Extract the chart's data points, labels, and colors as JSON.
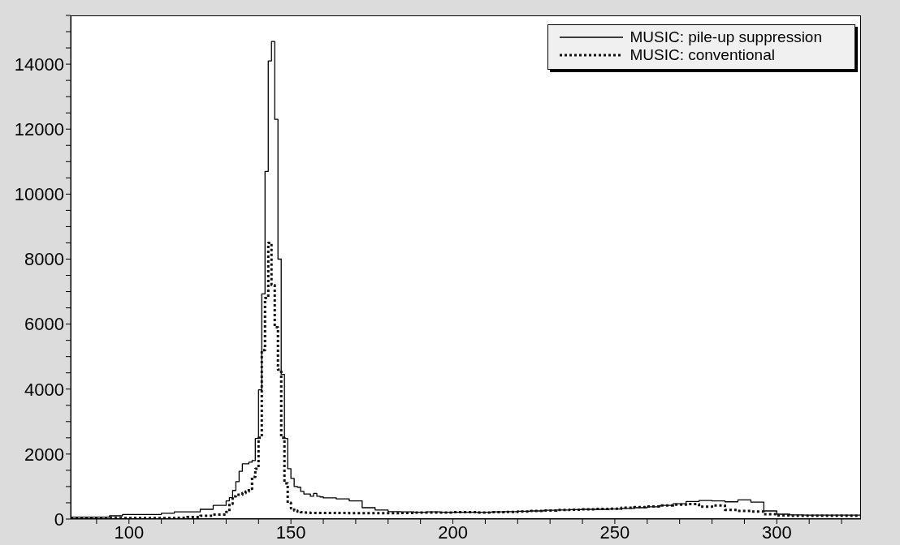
{
  "chart_data": {
    "type": "histogram",
    "bins": [
      82,
      86,
      90,
      94,
      98,
      102,
      106,
      110,
      114,
      118,
      122,
      126,
      130,
      131,
      132,
      133,
      134,
      135,
      136,
      137,
      138,
      139,
      140,
      141,
      142,
      143,
      144,
      145,
      146,
      147,
      148,
      149,
      150,
      151,
      152,
      153,
      154,
      155,
      156,
      157,
      158,
      159,
      160,
      164,
      168,
      172,
      176,
      180,
      184,
      188,
      192,
      196,
      200,
      204,
      208,
      212,
      216,
      220,
      224,
      228,
      232,
      236,
      240,
      244,
      248,
      252,
      256,
      260,
      264,
      268,
      272,
      276,
      280,
      284,
      288,
      292,
      296,
      300,
      304,
      308,
      312,
      316,
      320,
      324,
      326
    ],
    "series": [
      {
        "name": "MUSIC: pile-up suppression",
        "color": "#000000",
        "line_style": "solid",
        "values": [
          60,
          60,
          60,
          100,
          140,
          140,
          140,
          180,
          220,
          220,
          300,
          420,
          560,
          660,
          880,
          1150,
          1470,
          1700,
          1700,
          1750,
          1800,
          2480,
          3980,
          6930,
          10700,
          14100,
          14700,
          12300,
          8000,
          4450,
          2480,
          1550,
          1250,
          1000,
          980,
          850,
          770,
          770,
          700,
          790,
          700,
          680,
          650,
          620,
          560,
          350,
          280,
          230,
          220,
          210,
          220,
          210,
          210,
          210,
          210,
          220,
          230,
          240,
          250,
          270,
          280,
          290,
          300,
          300,
          310,
          330,
          350,
          380,
          420,
          470,
          540,
          570,
          560,
          530,
          590,
          520,
          250,
          150,
          130,
          120,
          120,
          120,
          120,
          120
        ]
      },
      {
        "name": "MUSIC: conventional",
        "color": "#111111",
        "line_style": "dotted",
        "values": [
          30,
          30,
          30,
          30,
          30,
          30,
          30,
          30,
          40,
          60,
          100,
          140,
          220,
          470,
          700,
          750,
          750,
          800,
          850,
          930,
          1300,
          1550,
          2500,
          5200,
          6800,
          8500,
          7200,
          5900,
          4600,
          2500,
          1100,
          500,
          330,
          260,
          230,
          210,
          200,
          200,
          190,
          190,
          190,
          190,
          190,
          185,
          180,
          180,
          180,
          180,
          190,
          200,
          200,
          200,
          210,
          210,
          200,
          210,
          220,
          230,
          250,
          260,
          280,
          290,
          300,
          310,
          320,
          350,
          370,
          390,
          420,
          440,
          460,
          380,
          420,
          280,
          250,
          230,
          150,
          110,
          100,
          100,
          100,
          100,
          100,
          100
        ]
      }
    ],
    "xlim": [
      82,
      326
    ],
    "xticks": [
      {
        "value": 90,
        "label": null
      },
      100,
      {
        "value": 110,
        "label": null
      },
      {
        "value": 120,
        "label": null
      },
      {
        "value": 130,
        "label": null
      },
      {
        "value": 140,
        "label": null
      },
      150,
      {
        "value": 160,
        "label": null
      },
      {
        "value": 170,
        "label": null
      },
      {
        "value": 180,
        "label": null
      },
      {
        "value": 190,
        "label": null
      },
      200,
      {
        "value": 210,
        "label": null
      },
      {
        "value": 220,
        "label": null
      },
      {
        "value": 230,
        "label": null
      },
      {
        "value": 240,
        "label": null
      },
      250,
      {
        "value": 260,
        "label": null
      },
      {
        "value": 270,
        "label": null
      },
      {
        "value": 280,
        "label": null
      },
      {
        "value": 290,
        "label": null
      },
      300,
      {
        "value": 310,
        "label": null
      },
      {
        "value": 320,
        "label": null
      }
    ],
    "ylim": [
      0,
      15500
    ],
    "yticks": [
      0,
      {
        "value": 500,
        "label": null
      },
      {
        "value": 1000,
        "label": null
      },
      {
        "value": 1500,
        "label": null
      },
      2000,
      {
        "value": 2500,
        "label": null
      },
      {
        "value": 3000,
        "label": null
      },
      {
        "value": 3500,
        "label": null
      },
      4000,
      {
        "value": 4500,
        "label": null
      },
      {
        "value": 5000,
        "label": null
      },
      {
        "value": 5500,
        "label": null
      },
      6000,
      {
        "value": 6500,
        "label": null
      },
      {
        "value": 7000,
        "label": null
      },
      {
        "value": 7500,
        "label": null
      },
      8000,
      {
        "value": 8500,
        "label": null
      },
      {
        "value": 9000,
        "label": null
      },
      {
        "value": 9500,
        "label": null
      },
      10000,
      {
        "value": 10500,
        "label": null
      },
      {
        "value": 11000,
        "label": null
      },
      {
        "value": 11500,
        "label": null
      },
      12000,
      {
        "value": 12500,
        "label": null
      },
      {
        "value": 13000,
        "label": null
      },
      {
        "value": 13500,
        "label": null
      },
      14000,
      {
        "value": 14500,
        "label": null
      },
      {
        "value": 15000,
        "label": null
      },
      {
        "value": 15500,
        "label": null
      }
    ],
    "legend": "top right"
  }
}
